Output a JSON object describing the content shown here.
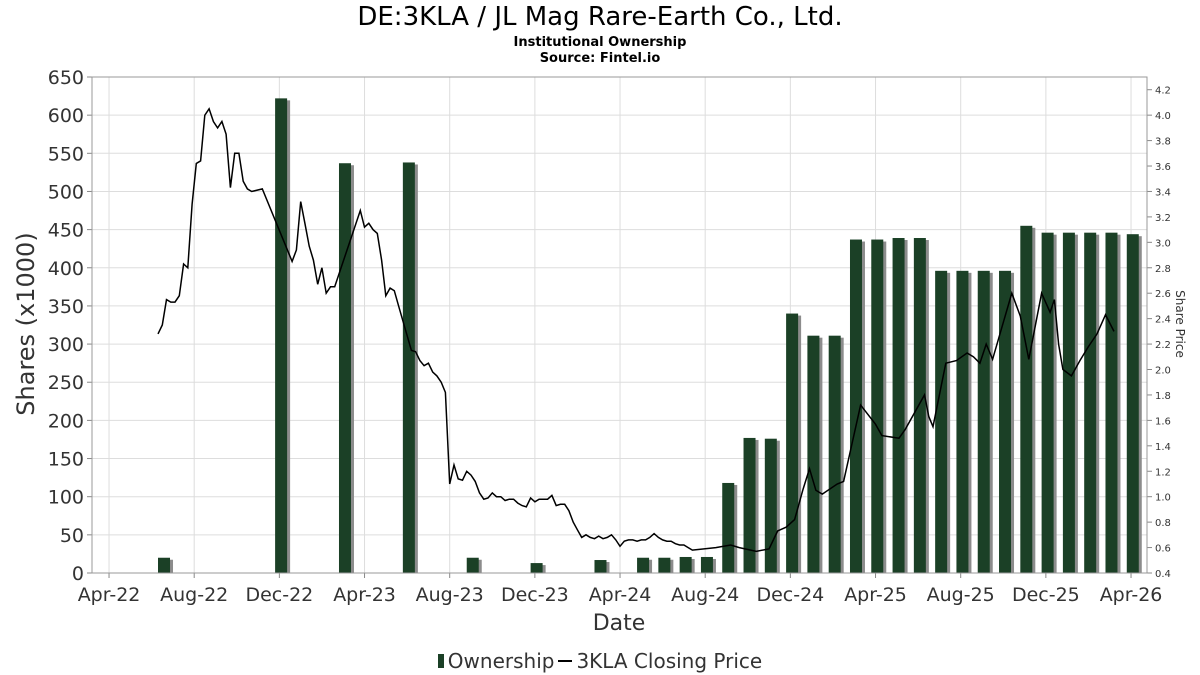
{
  "title": "DE:3KLA / JL Mag Rare-Earth Co., Ltd.",
  "subtitle": "Institutional Ownership",
  "source": "Source: Fintel.io",
  "legend": {
    "ownership": "Ownership",
    "price": "3KLA Closing Price"
  },
  "colors": {
    "bar": "#1b4026",
    "bar_shadow": "#8c8c8c",
    "line": "#000000",
    "grid": "#dddddd"
  },
  "chart_data": {
    "type": "bar+line",
    "xlabel": "Date",
    "ylabel": "Shares (x1000)",
    "y2label": "Share Price",
    "ylim": [
      0,
      650
    ],
    "y2lim": [
      0.4,
      4.3
    ],
    "yticks": [
      0,
      50,
      100,
      150,
      200,
      250,
      300,
      350,
      400,
      450,
      500,
      550,
      600,
      650
    ],
    "y2ticks": [
      "0.4",
      "0.6",
      "0.8",
      "1.0",
      "1.2",
      "1.4",
      "1.6",
      "1.8",
      "2.0",
      "2.2",
      "2.4",
      "2.6",
      "2.8",
      "3.0",
      "3.2",
      "3.4",
      "3.6",
      "3.8",
      "4.0",
      "4.2"
    ],
    "x_range_months": [
      0,
      48
    ],
    "x_origin": "Mar-22",
    "xticks": [
      {
        "label": "Apr-22",
        "m": 1
      },
      {
        "label": "Aug-22",
        "m": 5
      },
      {
        "label": "Dec-22",
        "m": 9
      },
      {
        "label": "Apr-23",
        "m": 13
      },
      {
        "label": "Aug-23",
        "m": 17
      },
      {
        "label": "Dec-23",
        "m": 21
      },
      {
        "label": "Apr-24",
        "m": 25
      },
      {
        "label": "Aug-24",
        "m": 29
      },
      {
        "label": "Dec-24",
        "m": 33
      },
      {
        "label": "Apr-25",
        "m": 37
      },
      {
        "label": "Aug-25",
        "m": 41
      },
      {
        "label": "Dec-25",
        "m": 45
      },
      {
        "label": "Apr-26",
        "m": 49
      }
    ],
    "ownership": [
      {
        "m": 3.3,
        "v": 20
      },
      {
        "m": 8.8,
        "v": 622
      },
      {
        "m": 11.8,
        "v": 537
      },
      {
        "m": 14.8,
        "v": 538
      },
      {
        "m": 17.8,
        "v": 20
      },
      {
        "m": 20.8,
        "v": 13
      },
      {
        "m": 23.8,
        "v": 17
      },
      {
        "m": 25.8,
        "v": 20
      },
      {
        "m": 26.8,
        "v": 20
      },
      {
        "m": 27.8,
        "v": 21
      },
      {
        "m": 28.8,
        "v": 21
      },
      {
        "m": 29.8,
        "v": 118
      },
      {
        "m": 30.8,
        "v": 177
      },
      {
        "m": 31.8,
        "v": 176
      },
      {
        "m": 32.8,
        "v": 340
      },
      {
        "m": 33.8,
        "v": 311
      },
      {
        "m": 34.8,
        "v": 311
      },
      {
        "m": 35.8,
        "v": 437
      },
      {
        "m": 36.8,
        "v": 437
      },
      {
        "m": 37.8,
        "v": 439
      },
      {
        "m": 38.8,
        "v": 439
      },
      {
        "m": 39.8,
        "v": 396
      },
      {
        "m": 40.8,
        "v": 396
      },
      {
        "m": 41.8,
        "v": 396
      },
      {
        "m": 42.8,
        "v": 396
      },
      {
        "m": 43.8,
        "v": 455
      },
      {
        "m": 44.8,
        "v": 446
      },
      {
        "m": 45.8,
        "v": 446
      },
      {
        "m": 46.8,
        "v": 446
      },
      {
        "m": 47.8,
        "v": 446
      },
      {
        "m": 48.8,
        "v": 444
      }
    ],
    "price": [
      [
        3.3,
        2.28
      ],
      [
        3.5,
        2.35
      ],
      [
        3.7,
        2.55
      ],
      [
        3.9,
        2.53
      ],
      [
        4.1,
        2.53
      ],
      [
        4.3,
        2.58
      ],
      [
        4.5,
        2.83
      ],
      [
        4.7,
        2.8
      ],
      [
        4.9,
        3.3
      ],
      [
        5.1,
        3.62
      ],
      [
        5.3,
        3.64
      ],
      [
        5.5,
        4.0
      ],
      [
        5.7,
        4.05
      ],
      [
        5.9,
        3.95
      ],
      [
        6.1,
        3.9
      ],
      [
        6.3,
        3.95
      ],
      [
        6.5,
        3.85
      ],
      [
        6.7,
        3.43
      ],
      [
        6.9,
        3.7
      ],
      [
        7.1,
        3.7
      ],
      [
        7.3,
        3.48
      ],
      [
        7.5,
        3.42
      ],
      [
        7.7,
        3.4
      ],
      [
        8.2,
        3.42
      ],
      [
        9.6,
        2.85
      ],
      [
        9.8,
        2.94
      ],
      [
        10.0,
        3.32
      ],
      [
        10.2,
        3.15
      ],
      [
        10.4,
        2.97
      ],
      [
        10.6,
        2.86
      ],
      [
        10.8,
        2.67
      ],
      [
        11.0,
        2.8
      ],
      [
        11.2,
        2.6
      ],
      [
        11.4,
        2.65
      ],
      [
        11.6,
        2.65
      ],
      [
        12.8,
        3.25
      ],
      [
        13.0,
        3.12
      ],
      [
        13.2,
        3.15
      ],
      [
        13.4,
        3.1
      ],
      [
        13.6,
        3.07
      ],
      [
        13.8,
        2.86
      ],
      [
        14.0,
        2.58
      ],
      [
        14.2,
        2.64
      ],
      [
        14.4,
        2.62
      ],
      [
        14.6,
        2.5
      ],
      [
        15.2,
        2.15
      ],
      [
        15.4,
        2.14
      ],
      [
        15.6,
        2.07
      ],
      [
        15.8,
        2.03
      ],
      [
        16.0,
        2.05
      ],
      [
        16.2,
        1.98
      ],
      [
        16.4,
        1.95
      ],
      [
        16.6,
        1.9
      ],
      [
        16.8,
        1.82
      ],
      [
        17.0,
        1.1
      ],
      [
        17.2,
        1.25
      ],
      [
        17.4,
        1.14
      ],
      [
        17.6,
        1.13
      ],
      [
        17.8,
        1.2
      ],
      [
        18.0,
        1.17
      ],
      [
        18.2,
        1.12
      ],
      [
        18.4,
        1.03
      ],
      [
        18.6,
        0.98
      ],
      [
        18.8,
        0.99
      ],
      [
        19.0,
        1.03
      ],
      [
        19.2,
        1.0
      ],
      [
        19.4,
        1.0
      ],
      [
        19.6,
        0.97
      ],
      [
        19.8,
        0.98
      ],
      [
        20.0,
        0.98
      ],
      [
        20.2,
        0.95
      ],
      [
        20.4,
        0.93
      ],
      [
        20.6,
        0.92
      ],
      [
        20.8,
        0.99
      ],
      [
        21.0,
        0.96
      ],
      [
        21.2,
        0.98
      ],
      [
        21.4,
        0.98
      ],
      [
        21.6,
        0.98
      ],
      [
        21.8,
        1.01
      ],
      [
        22.0,
        0.93
      ],
      [
        22.2,
        0.94
      ],
      [
        22.4,
        0.94
      ],
      [
        22.6,
        0.89
      ],
      [
        22.8,
        0.8
      ],
      [
        23.0,
        0.74
      ],
      [
        23.2,
        0.68
      ],
      [
        23.4,
        0.7
      ],
      [
        23.6,
        0.68
      ],
      [
        23.8,
        0.67
      ],
      [
        24.0,
        0.69
      ],
      [
        24.2,
        0.67
      ],
      [
        24.4,
        0.68
      ],
      [
        24.6,
        0.7
      ],
      [
        24.8,
        0.66
      ],
      [
        25.0,
        0.61
      ],
      [
        25.2,
        0.65
      ],
      [
        25.4,
        0.66
      ],
      [
        25.6,
        0.66
      ],
      [
        25.8,
        0.65
      ],
      [
        26.0,
        0.66
      ],
      [
        26.2,
        0.66
      ],
      [
        26.4,
        0.68
      ],
      [
        26.6,
        0.71
      ],
      [
        26.8,
        0.68
      ],
      [
        27.0,
        0.66
      ],
      [
        27.2,
        0.65
      ],
      [
        27.4,
        0.65
      ],
      [
        27.6,
        0.63
      ],
      [
        27.8,
        0.62
      ],
      [
        28.0,
        0.62
      ],
      [
        28.2,
        0.6
      ],
      [
        28.4,
        0.58
      ],
      [
        29.5,
        0.6
      ],
      [
        30.2,
        0.62
      ],
      [
        30.6,
        0.6
      ],
      [
        31.4,
        0.57
      ],
      [
        32.0,
        0.59
      ],
      [
        32.4,
        0.73
      ],
      [
        32.8,
        0.76
      ],
      [
        33.2,
        0.82
      ],
      [
        33.6,
        1.06
      ],
      [
        33.9,
        1.22
      ],
      [
        34.2,
        1.05
      ],
      [
        34.5,
        1.02
      ],
      [
        35.2,
        1.1
      ],
      [
        35.5,
        1.12
      ],
      [
        36.3,
        1.72
      ],
      [
        37.0,
        1.57
      ],
      [
        37.3,
        1.48
      ],
      [
        38.1,
        1.46
      ],
      [
        38.4,
        1.53
      ],
      [
        39.3,
        1.8
      ],
      [
        39.5,
        1.63
      ],
      [
        39.7,
        1.55
      ],
      [
        40.3,
        2.05
      ],
      [
        40.8,
        2.07
      ],
      [
        41.3,
        2.13
      ],
      [
        41.6,
        2.1
      ],
      [
        41.9,
        2.05
      ],
      [
        42.2,
        2.2
      ],
      [
        42.5,
        2.08
      ],
      [
        43.4,
        2.6
      ],
      [
        43.8,
        2.42
      ],
      [
        44.2,
        2.08
      ],
      [
        44.8,
        2.6
      ],
      [
        45.2,
        2.45
      ],
      [
        45.4,
        2.55
      ],
      [
        45.6,
        2.2
      ],
      [
        45.8,
        2.0
      ],
      [
        46.2,
        1.95
      ],
      [
        46.6,
        2.07
      ],
      [
        47.0,
        2.18
      ],
      [
        47.4,
        2.28
      ],
      [
        47.8,
        2.43
      ],
      [
        48.2,
        2.3
      ]
    ]
  }
}
